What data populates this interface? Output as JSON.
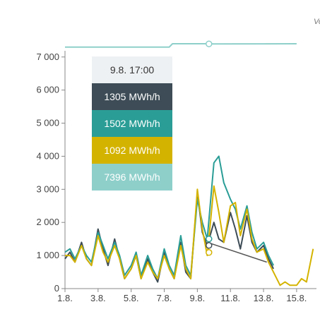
{
  "corner_label": "Vo",
  "tooltip": {
    "time": "9.8. 17:00",
    "rows": [
      {
        "text": "1305 MWh/h",
        "color": "#3d4c56"
      },
      {
        "text": "1502 MWh/h",
        "color": "#2a9d96"
      },
      {
        "text": "1092 MWh/h",
        "color": "#d4b300"
      },
      {
        "text": "7396 MWh/h",
        "color": "#8ecfca"
      }
    ]
  },
  "colors": {
    "dark": "#3d4c56",
    "teal": "#2a9d96",
    "yellow": "#d4b300",
    "light": "#8ecfca",
    "gray_line": "#555555"
  },
  "chart_data": {
    "type": "line",
    "x_tick_labels": [
      "1.8.",
      "3.8.",
      "5.8.",
      "7.8.",
      "9.8.",
      "11.8.",
      "13.8.",
      "15.8."
    ],
    "y_tick_labels": [
      "0",
      "1 000",
      "2 000",
      "3 000",
      "4 000",
      "5 000",
      "6 000",
      "7 000"
    ],
    "xlim": [
      1,
      16.2
    ],
    "ylim": [
      0,
      7400
    ],
    "grid": false,
    "series": [
      {
        "color": "dark",
        "x": [
          1,
          1.3,
          1.6,
          2,
          2.3,
          2.6,
          3,
          3.3,
          3.6,
          4,
          4.3,
          4.6,
          5,
          5.3,
          5.6,
          6,
          6.3,
          6.6,
          7,
          7.3,
          7.6,
          8,
          8.3,
          8.6,
          9,
          9.3,
          9.6,
          10,
          10.3,
          10.6,
          11,
          11.3,
          11.6,
          12,
          12.3,
          12.6,
          13,
          13.3,
          13.6
        ],
        "values": [
          900,
          1100,
          800,
          1400,
          900,
          700,
          1800,
          1200,
          700,
          1500,
          900,
          300,
          600,
          1000,
          300,
          900,
          500,
          200,
          1100,
          600,
          300,
          1400,
          500,
          300,
          2900,
          1700,
          1300,
          2000,
          1500,
          1400,
          2300,
          1800,
          1200,
          2200,
          1400,
          1100,
          1300,
          900,
          600
        ]
      },
      {
        "color": "teal",
        "x": [
          1,
          1.3,
          1.6,
          2,
          2.3,
          2.6,
          3,
          3.3,
          3.6,
          4,
          4.3,
          4.6,
          5,
          5.3,
          5.6,
          6,
          6.3,
          6.6,
          7,
          7.3,
          7.6,
          8,
          8.3,
          8.6,
          9,
          9.3,
          9.6,
          10,
          10.3,
          10.6,
          11,
          11.3,
          11.6,
          12,
          12.3,
          12.6,
          13,
          13.3,
          13.6
        ],
        "values": [
          1100,
          1200,
          900,
          1300,
          1000,
          800,
          1700,
          1300,
          900,
          1400,
          1000,
          400,
          700,
          1100,
          400,
          1000,
          600,
          300,
          1200,
          700,
          400,
          1600,
          700,
          400,
          2700,
          2000,
          1500,
          3800,
          4000,
          3200,
          2700,
          2400,
          1800,
          2500,
          1700,
          1200,
          1400,
          1000,
          700
        ]
      },
      {
        "color": "yellow",
        "x": [
          1,
          1.3,
          1.6,
          2,
          2.3,
          2.6,
          3,
          3.3,
          3.6,
          4,
          4.3,
          4.6,
          5,
          5.3,
          5.6,
          6,
          6.3,
          6.6,
          7,
          7.3,
          7.6,
          8,
          8.3,
          8.6,
          9,
          9.3,
          9.6,
          10,
          10.3,
          10.6,
          11,
          11.3,
          11.6,
          12,
          12.3,
          12.6,
          13,
          13.3,
          13.6,
          14,
          14.3,
          14.6,
          15,
          15.3,
          15.6,
          16
        ],
        "values": [
          1000,
          1000,
          800,
          1300,
          900,
          700,
          1600,
          1100,
          800,
          1300,
          900,
          300,
          600,
          1000,
          300,
          800,
          500,
          300,
          1000,
          600,
          300,
          1300,
          600,
          300,
          3000,
          1800,
          1000,
          3100,
          2300,
          1400,
          2500,
          2600,
          1600,
          2400,
          1500,
          1100,
          1200,
          800,
          500,
          100,
          200,
          100,
          100,
          300,
          200,
          1200
        ]
      },
      {
        "color": "gray_line",
        "x": [
          9.6,
          13.2
        ],
        "values": [
          1400,
          800
        ]
      },
      {
        "color": "light",
        "x": [
          1,
          7.3,
          7.5,
          9.5,
          10,
          15
        ],
        "values": [
          7300,
          7300,
          7400,
          7400,
          7396,
          7400
        ]
      }
    ]
  }
}
